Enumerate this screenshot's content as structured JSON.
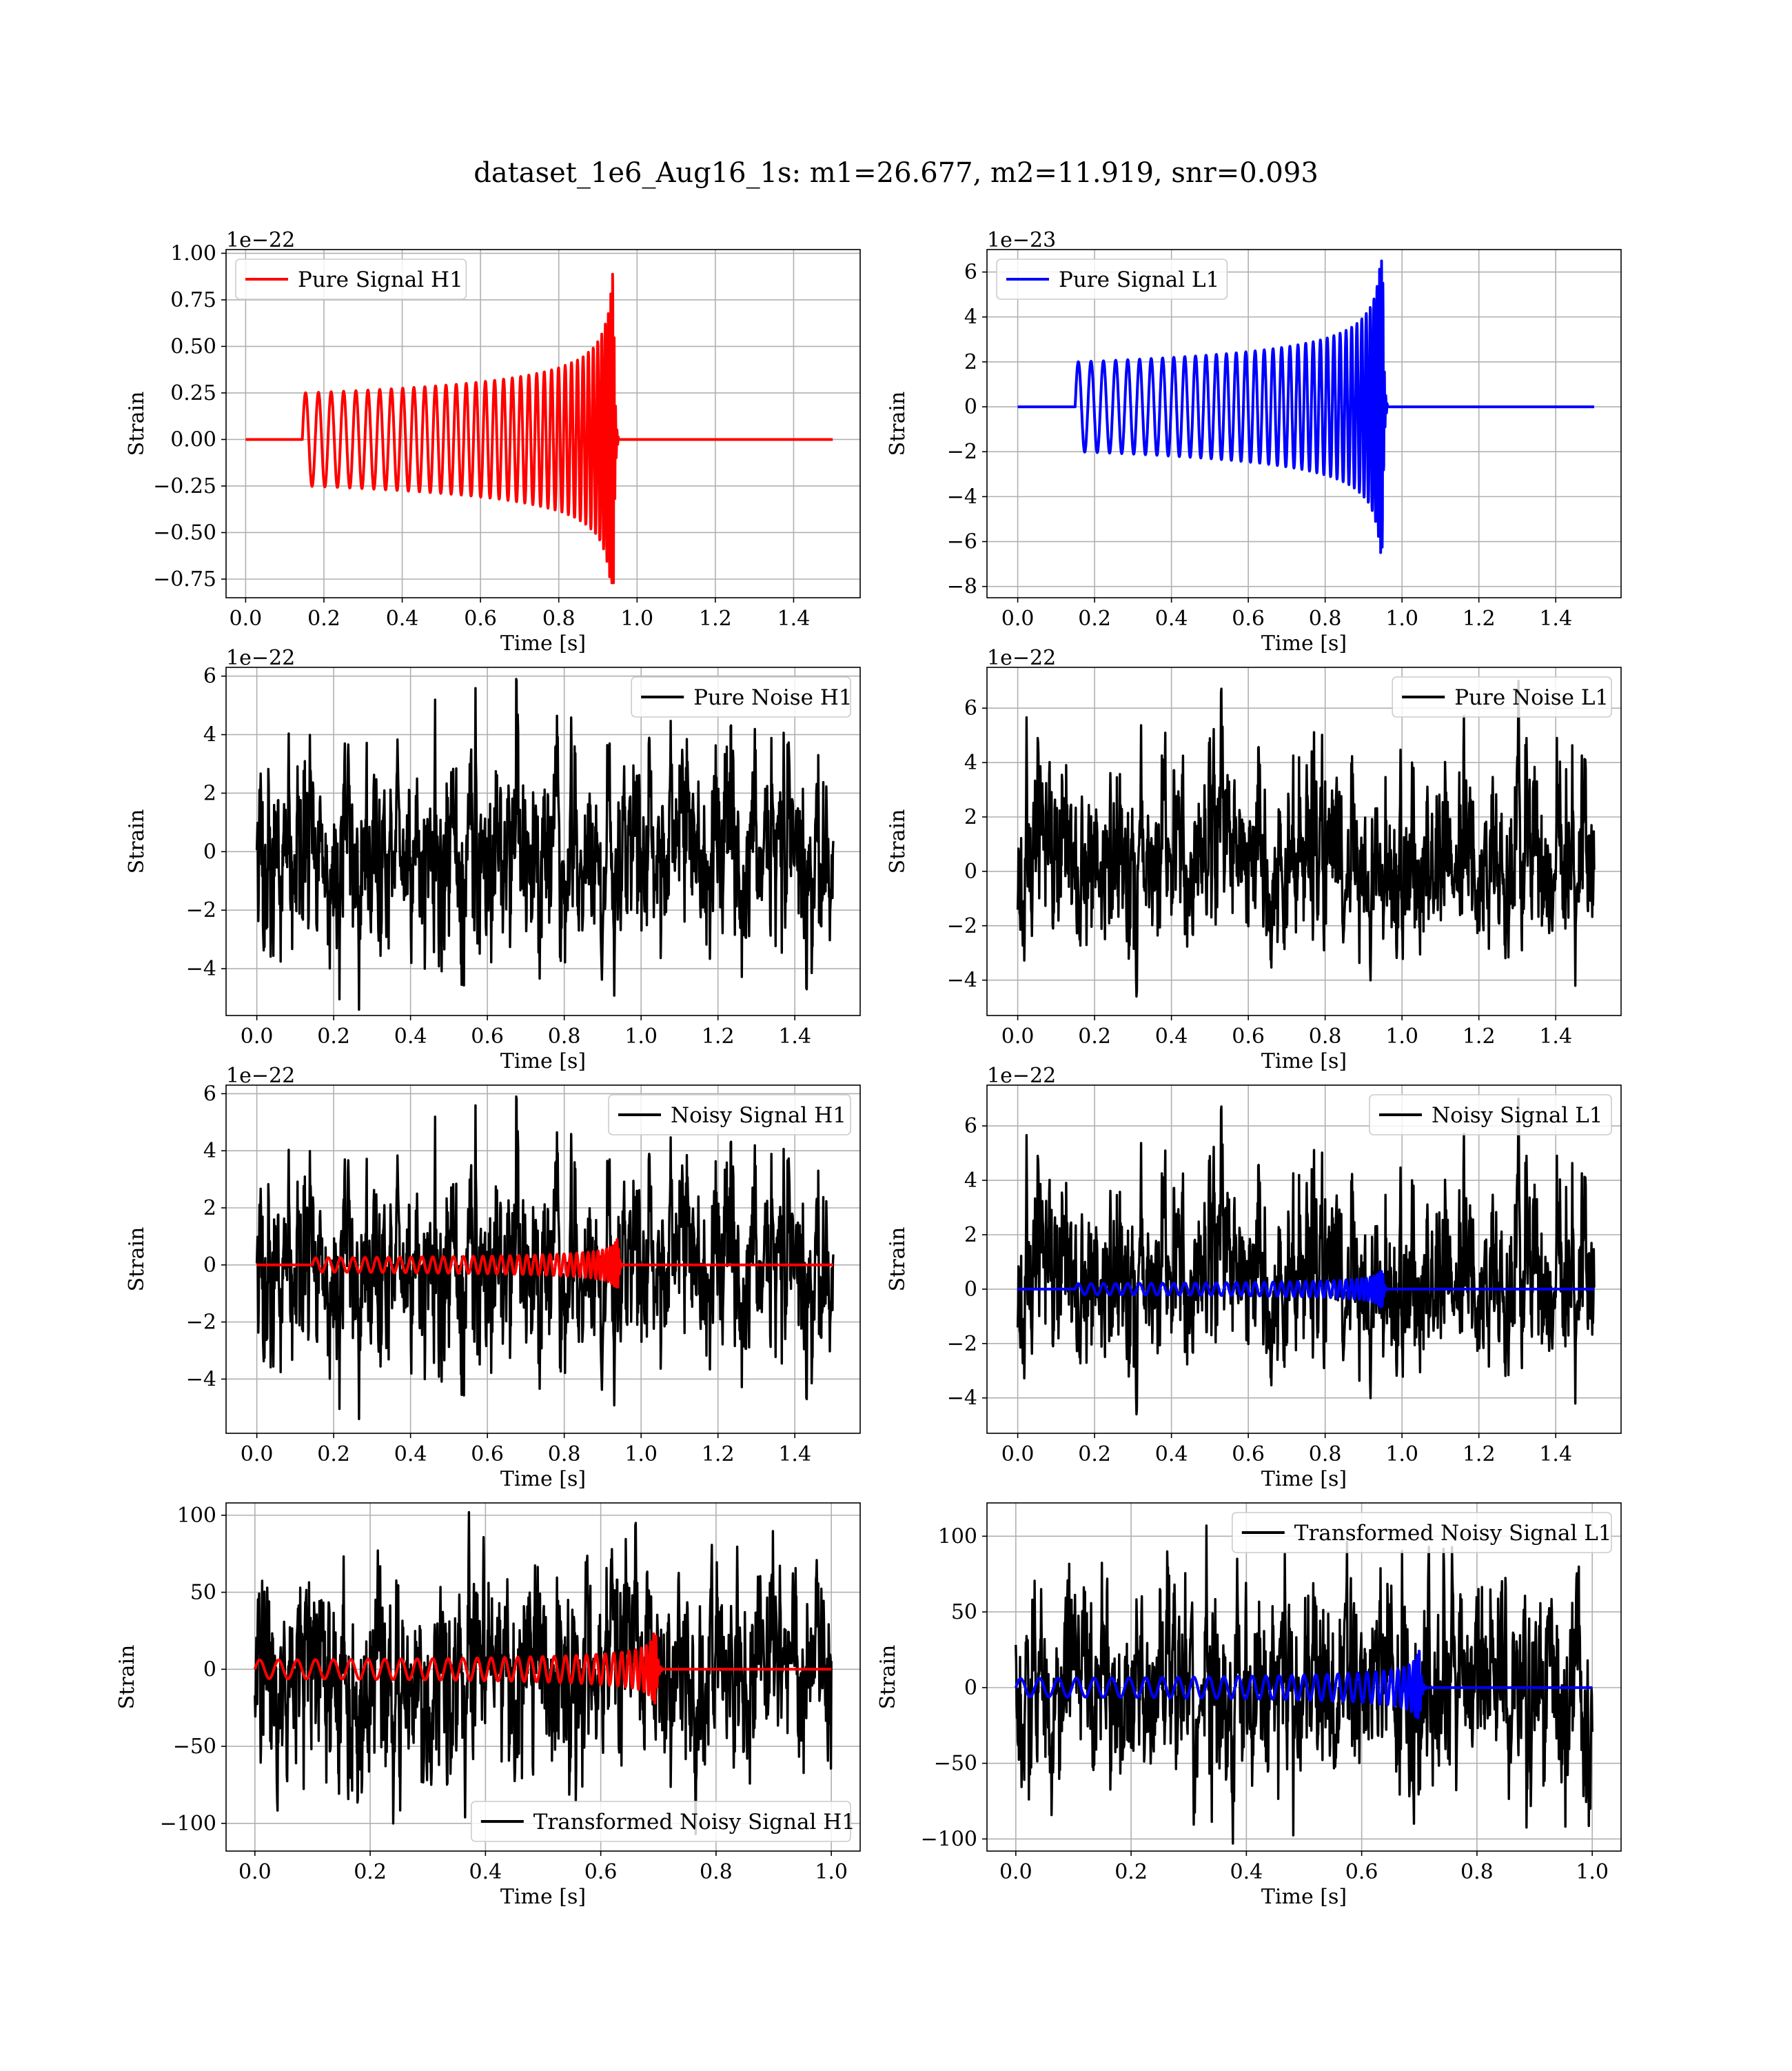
{
  "figure_title": "dataset_1e6_Aug16_1s: m1=26.677, m2=11.919, snr=0.093",
  "chart_data": [
    {
      "type": "line",
      "panel": "pure-signal-h1",
      "xlabel": "Time [s]",
      "ylabel": "Strain",
      "offset_text": "1e−22",
      "xlim": [
        -0.05,
        1.57
      ],
      "ylim": [
        -0.85,
        1.02
      ],
      "xticks": [
        0.0,
        0.2,
        0.4,
        0.6,
        0.8,
        1.0,
        1.2,
        1.4
      ],
      "xtick_labels": [
        "0.0",
        "0.2",
        "0.4",
        "0.6",
        "0.8",
        "1.0",
        "1.2",
        "1.4"
      ],
      "yticks": [
        -0.75,
        -0.5,
        -0.25,
        0.0,
        0.25,
        0.5,
        0.75,
        1.0
      ],
      "ytick_labels": [
        "−0.75",
        "−0.50",
        "−0.25",
        "0.00",
        "0.25",
        "0.50",
        "0.75",
        "1.00"
      ],
      "grid": true,
      "legend_position": "upper-left",
      "series": [
        {
          "name": "Pure Signal H1",
          "color": "#ff0000",
          "kind": "chirp",
          "x_start": 0.0,
          "x_end": 1.5,
          "chirp_start": 0.145,
          "merger": 0.94,
          "amplitude_start": 0.25,
          "amplitude_peak": 0.95,
          "amplitude_min": -0.77
        }
      ]
    },
    {
      "type": "line",
      "panel": "pure-signal-l1",
      "xlabel": "Time [s]",
      "ylabel": "Strain",
      "offset_text": "1e−23",
      "xlim": [
        -0.08,
        1.57
      ],
      "ylim": [
        -8.5,
        7.0
      ],
      "xticks": [
        0.0,
        0.2,
        0.4,
        0.6,
        0.8,
        1.0,
        1.2,
        1.4
      ],
      "xtick_labels": [
        "0.0",
        "0.2",
        "0.4",
        "0.6",
        "0.8",
        "1.0",
        "1.2",
        "1.4"
      ],
      "yticks": [
        -8,
        -6,
        -4,
        -2,
        0,
        2,
        4,
        6
      ],
      "ytick_labels": [
        "−8",
        "−6",
        "−4",
        "−2",
        "0",
        "2",
        "4",
        "6"
      ],
      "grid": true,
      "legend_position": "upper-left",
      "series": [
        {
          "name": "Pure Signal L1",
          "color": "#0000ff",
          "kind": "chirp",
          "x_start": 0.0,
          "x_end": 1.5,
          "chirp_start": 0.15,
          "merger": 0.95,
          "amplitude_start": 2.0,
          "amplitude_peak": 6.5,
          "amplitude_min": -8.0
        }
      ]
    },
    {
      "type": "line",
      "panel": "pure-noise-h1",
      "xlabel": "Time [s]",
      "ylabel": "Strain",
      "offset_text": "1e−22",
      "xlim": [
        -0.08,
        1.57
      ],
      "ylim": [
        -5.6,
        6.3
      ],
      "xticks": [
        0.0,
        0.2,
        0.4,
        0.6,
        0.8,
        1.0,
        1.2,
        1.4
      ],
      "xtick_labels": [
        "0.0",
        "0.2",
        "0.4",
        "0.6",
        "0.8",
        "1.0",
        "1.2",
        "1.4"
      ],
      "yticks": [
        -4,
        -2,
        0,
        2,
        4,
        6
      ],
      "ytick_labels": [
        "−4",
        "−2",
        "0",
        "2",
        "4",
        "6"
      ],
      "grid": true,
      "legend_position": "upper-right",
      "series": [
        {
          "name": "Pure Noise H1",
          "color": "#000000",
          "kind": "noise",
          "x_start": 0.0,
          "x_end": 1.5,
          "spread": 1.5,
          "max": 5.9,
          "min": -5.4,
          "seed": 11
        }
      ]
    },
    {
      "type": "line",
      "panel": "pure-noise-l1",
      "xlabel": "Time [s]",
      "ylabel": "Strain",
      "offset_text": "1e−22",
      "xlim": [
        -0.08,
        1.57
      ],
      "ylim": [
        -5.3,
        7.5
      ],
      "xticks": [
        0.0,
        0.2,
        0.4,
        0.6,
        0.8,
        1.0,
        1.2,
        1.4
      ],
      "xtick_labels": [
        "0.0",
        "0.2",
        "0.4",
        "0.6",
        "0.8",
        "1.0",
        "1.2",
        "1.4"
      ],
      "yticks": [
        -4,
        -2,
        0,
        2,
        4,
        6
      ],
      "ytick_labels": [
        "−4",
        "−2",
        "0",
        "2",
        "4",
        "6"
      ],
      "grid": true,
      "legend_position": "upper-right",
      "series": [
        {
          "name": "Pure Noise L1",
          "color": "#000000",
          "kind": "noise",
          "x_start": 0.0,
          "x_end": 1.5,
          "spread": 1.5,
          "max": 7.0,
          "min": -4.6,
          "seed": 23
        }
      ]
    },
    {
      "type": "line",
      "panel": "noisy-signal-h1",
      "xlabel": "Time [s]",
      "ylabel": "Strain",
      "offset_text": "1e−22",
      "xlim": [
        -0.08,
        1.57
      ],
      "ylim": [
        -5.9,
        6.3
      ],
      "xticks": [
        0.0,
        0.2,
        0.4,
        0.6,
        0.8,
        1.0,
        1.2,
        1.4
      ],
      "xtick_labels": [
        "0.0",
        "0.2",
        "0.4",
        "0.6",
        "0.8",
        "1.0",
        "1.2",
        "1.4"
      ],
      "yticks": [
        -4,
        -2,
        0,
        2,
        4,
        6
      ],
      "ytick_labels": [
        "−4",
        "−2",
        "0",
        "2",
        "4",
        "6"
      ],
      "grid": true,
      "legend_position": "upper-right",
      "series": [
        {
          "name": "Noisy Signal H1",
          "color": "#000000",
          "kind": "noise",
          "x_start": 0.0,
          "x_end": 1.5,
          "spread": 1.5,
          "max": 5.9,
          "min": -5.4,
          "seed": 11
        },
        {
          "color": "#ff0000",
          "kind": "chirp",
          "x_start": 0.0,
          "x_end": 1.5,
          "chirp_start": 0.145,
          "merger": 0.94,
          "amplitude_start": 0.25,
          "amplitude_peak": 0.95,
          "amplitude_min": -0.77
        }
      ]
    },
    {
      "type": "line",
      "panel": "noisy-signal-l1",
      "xlabel": "Time [s]",
      "ylabel": "Strain",
      "offset_text": "1e−22",
      "xlim": [
        -0.08,
        1.57
      ],
      "ylim": [
        -5.3,
        7.5
      ],
      "xticks": [
        0.0,
        0.2,
        0.4,
        0.6,
        0.8,
        1.0,
        1.2,
        1.4
      ],
      "xtick_labels": [
        "0.0",
        "0.2",
        "0.4",
        "0.6",
        "0.8",
        "1.0",
        "1.2",
        "1.4"
      ],
      "yticks": [
        -4,
        -2,
        0,
        2,
        4,
        6
      ],
      "ytick_labels": [
        "−4",
        "−2",
        "0",
        "2",
        "4",
        "6"
      ],
      "grid": true,
      "legend_position": "upper-right",
      "series": [
        {
          "name": "Noisy Signal L1",
          "color": "#000000",
          "kind": "noise",
          "x_start": 0.0,
          "x_end": 1.5,
          "spread": 1.5,
          "max": 7.0,
          "min": -4.6,
          "seed": 23
        },
        {
          "color": "#0000ff",
          "kind": "chirp",
          "x_start": 0.0,
          "x_end": 1.5,
          "chirp_start": 0.15,
          "merger": 0.95,
          "amplitude_start": 0.2,
          "amplitude_peak": 0.65,
          "amplitude_min": -0.8
        }
      ]
    },
    {
      "type": "line",
      "panel": "transformed-noisy-signal-h1",
      "xlabel": "Time [s]",
      "ylabel": "Strain",
      "offset_text": "",
      "xlim": [
        -0.05,
        1.05
      ],
      "ylim": [
        -118,
        108
      ],
      "xticks": [
        0.0,
        0.2,
        0.4,
        0.6,
        0.8,
        1.0
      ],
      "xtick_labels": [
        "0.0",
        "0.2",
        "0.4",
        "0.6",
        "0.8",
        "1.0"
      ],
      "yticks": [
        -100,
        -50,
        0,
        50,
        100
      ],
      "ytick_labels": [
        "−100",
        "−50",
        "0",
        "50",
        "100"
      ],
      "grid": true,
      "legend_position": "lower-right",
      "series": [
        {
          "name": "Transformed Noisy Signal H1",
          "color": "#000000",
          "kind": "noise",
          "x_start": 0.0,
          "x_end": 1.0,
          "spread": 27,
          "max": 102,
          "min": -107,
          "seed": 37
        },
        {
          "color": "#ff0000",
          "kind": "chirp",
          "x_start": 0.0,
          "x_end": 1.0,
          "chirp_start": 0.0,
          "merger": 0.695,
          "amplitude_start": 6,
          "amplitude_peak": 28,
          "amplitude_min": -22
        }
      ]
    },
    {
      "type": "line",
      "panel": "transformed-noisy-signal-l1",
      "xlabel": "Time [s]",
      "ylabel": "Strain",
      "offset_text": "",
      "xlim": [
        -0.05,
        1.05
      ],
      "ylim": [
        -108,
        122
      ],
      "xticks": [
        0.0,
        0.2,
        0.4,
        0.6,
        0.8,
        1.0
      ],
      "xtick_labels": [
        "0.0",
        "0.2",
        "0.4",
        "0.6",
        "0.8",
        "1.0"
      ],
      "yticks": [
        -100,
        -50,
        0,
        50,
        100
      ],
      "ytick_labels": [
        "−100",
        "−50",
        "0",
        "50",
        "100"
      ],
      "grid": true,
      "legend_position": "upper-right",
      "series": [
        {
          "name": "Transformed Noisy Signal L1",
          "color": "#000000",
          "kind": "noise",
          "x_start": 0.0,
          "x_end": 1.0,
          "spread": 27,
          "max": 107,
          "min": -103,
          "seed": 53
        },
        {
          "color": "#0000ff",
          "kind": "chirp",
          "x_start": 0.0,
          "x_end": 1.0,
          "chirp_start": 0.0,
          "merger": 0.7,
          "amplitude_start": 6,
          "amplitude_peak": 26,
          "amplitude_min": -20
        }
      ]
    }
  ]
}
